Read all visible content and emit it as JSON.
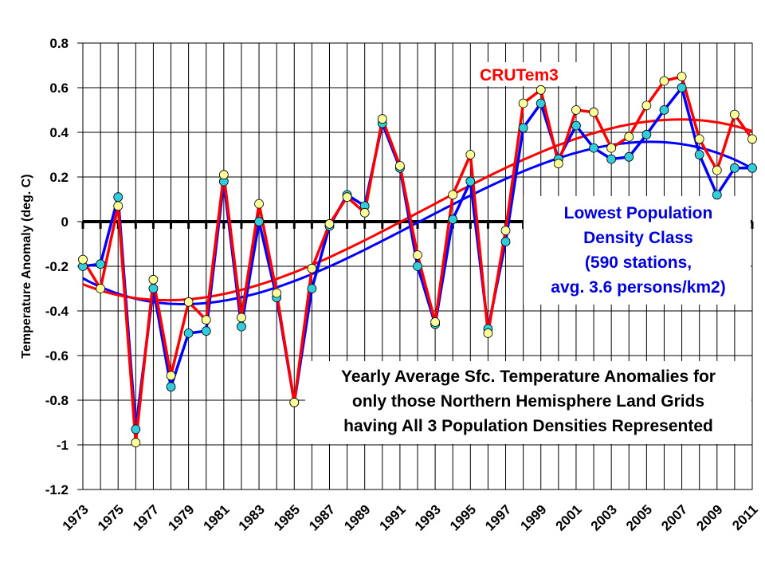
{
  "chart_data": {
    "type": "line",
    "title": "",
    "xlabel": "",
    "ylabel": "Temperature Anomaly (deg. C)",
    "ylim": [
      -1.2,
      0.8
    ],
    "yticks": [
      0.8,
      0.6,
      0.4,
      0.2,
      0,
      -0.2,
      -0.4,
      -0.6,
      -0.8,
      -1,
      -1.2
    ],
    "ytick_labels": [
      "0.8",
      "0.6",
      "0.4",
      "0.2",
      "0",
      "-0.2",
      "-0.4",
      "-0.6",
      "-0.8",
      "-1",
      "-1.2"
    ],
    "x": [
      1973,
      1974,
      1975,
      1976,
      1977,
      1978,
      1979,
      1980,
      1981,
      1982,
      1983,
      1984,
      1985,
      1986,
      1987,
      1988,
      1989,
      1990,
      1991,
      1992,
      1993,
      1994,
      1995,
      1996,
      1997,
      1998,
      1999,
      2000,
      2001,
      2002,
      2003,
      2004,
      2005,
      2006,
      2007,
      2008,
      2009,
      2010,
      2011
    ],
    "xtick_labels": [
      "1973",
      "1975",
      "1977",
      "1979",
      "1981",
      "1983",
      "1985",
      "1987",
      "1989",
      "1991",
      "1993",
      "1995",
      "1997",
      "1999",
      "2001",
      "2003",
      "2005",
      "2007",
      "2009",
      "2011"
    ],
    "grid": true,
    "series": [
      {
        "name": "Lowest Population Density Class",
        "line_color": "#0000ff",
        "marker_color": "#33ccdd",
        "trend": "polynomial",
        "values": [
          -0.2,
          -0.19,
          0.11,
          -0.93,
          -0.3,
          -0.74,
          -0.5,
          -0.49,
          0.18,
          -0.47,
          0.0,
          -0.34,
          -0.81,
          -0.3,
          -0.02,
          0.12,
          0.07,
          0.44,
          0.24,
          -0.2,
          -0.46,
          0.01,
          0.18,
          -0.48,
          -0.09,
          0.42,
          0.53,
          0.28,
          0.43,
          0.33,
          0.28,
          0.29,
          0.39,
          0.5,
          0.6,
          0.3,
          0.12,
          0.24,
          0.24
        ]
      },
      {
        "name": "CRUTem3",
        "line_color": "#ff0000",
        "marker_color": "#ffff99",
        "trend": "polynomial",
        "values": [
          -0.17,
          -0.3,
          0.07,
          -0.99,
          -0.26,
          -0.69,
          -0.36,
          -0.44,
          0.21,
          -0.43,
          0.08,
          -0.32,
          -0.81,
          -0.21,
          -0.01,
          0.11,
          0.04,
          0.46,
          0.25,
          -0.15,
          -0.45,
          0.12,
          0.3,
          -0.5,
          -0.04,
          0.53,
          0.59,
          0.26,
          0.5,
          0.49,
          0.33,
          0.38,
          0.52,
          0.63,
          0.65,
          0.37,
          0.23,
          0.48,
          0.37
        ]
      }
    ],
    "annotations": {
      "crutem_label": "CRUTem3",
      "lowest_label": [
        "Lowest Population",
        "Density Class",
        "(590 stations,",
        "avg. 3.6 persons/km2)"
      ],
      "description": [
        "Yearly Average Sfc. Temperature Anomalies for",
        "only those Northern Hemisphere Land Grids",
        "having All 3 Population Densities Represented"
      ]
    }
  }
}
